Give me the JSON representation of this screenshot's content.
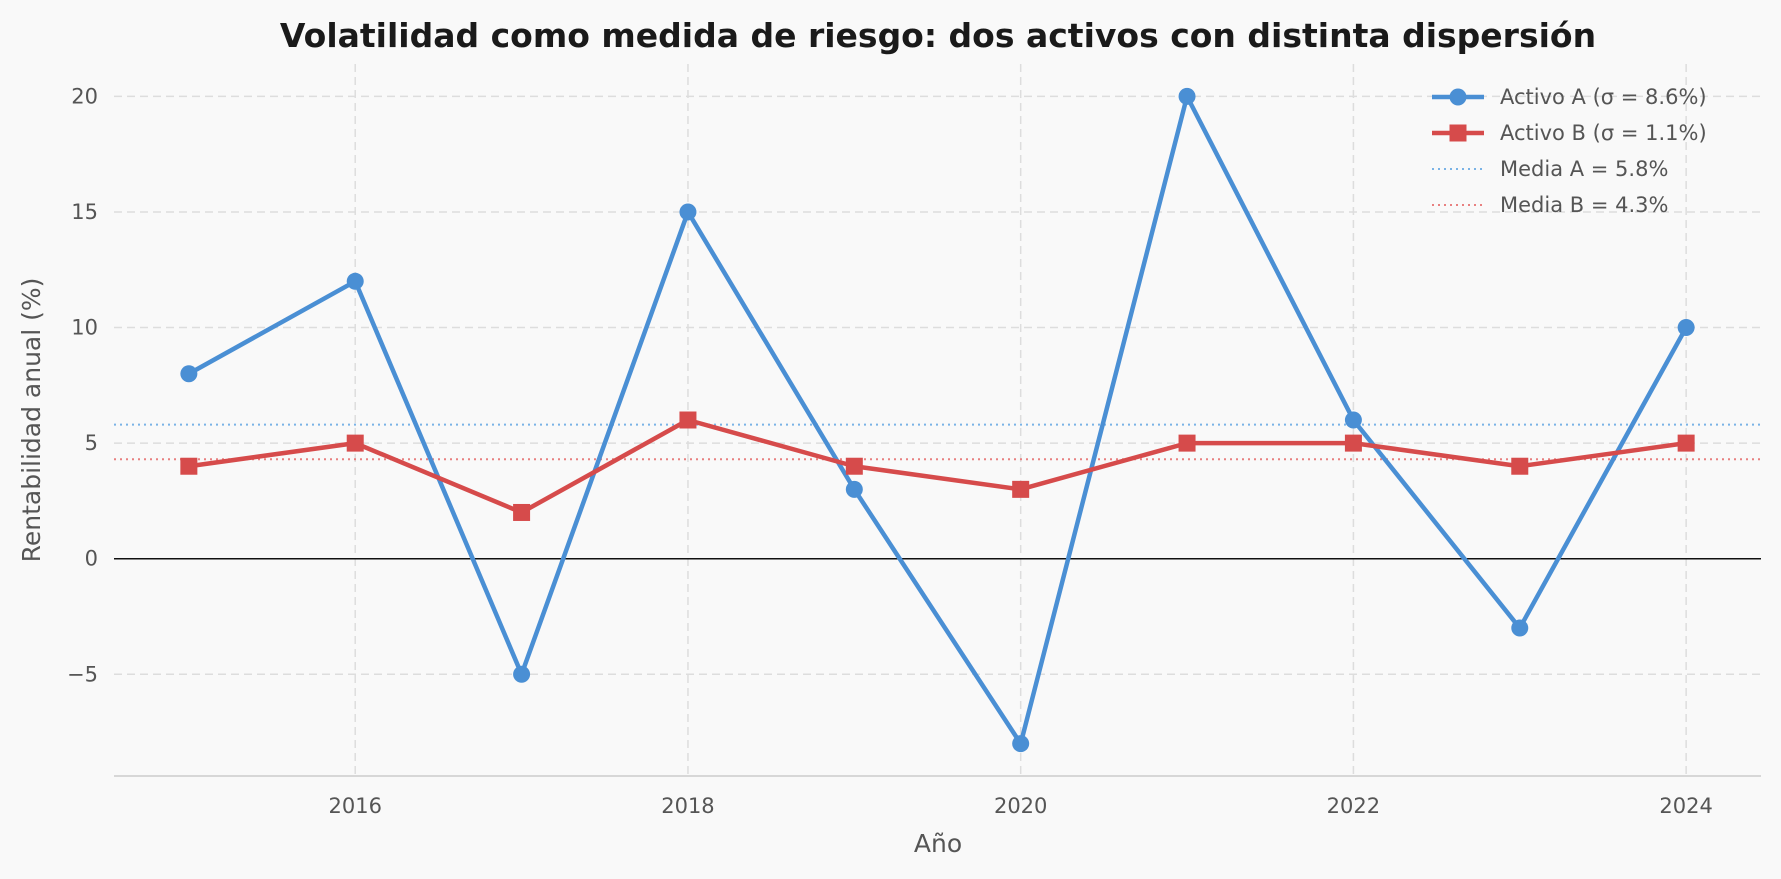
{
  "chart_data": {
    "type": "line",
    "title": "Volatilidad como medida de riesgo: dos activos con distinta dispersión",
    "xlabel": "Año",
    "ylabel": "Rentabilidad anual (%)",
    "x": [
      2015,
      2016,
      2017,
      2018,
      2019,
      2020,
      2021,
      2022,
      2023,
      2024
    ],
    "xlim": [
      2014.55,
      2024.45
    ],
    "ylim": [
      -9.4,
      21.4
    ],
    "xticks": [
      2016,
      2018,
      2020,
      2022,
      2024
    ],
    "xtick_labels": [
      "2016",
      "2018",
      "2020",
      "2022",
      "2024"
    ],
    "yticks": [
      -5,
      0,
      5,
      10,
      15,
      20
    ],
    "ytick_labels": [
      "−5",
      "0",
      "5",
      "10",
      "15",
      "20"
    ],
    "grid": true,
    "zero_line": true,
    "legend_position": "top-right",
    "series": [
      {
        "name": "Activo A  (σ = 8.6%)",
        "values": [
          8,
          12,
          -5,
          15,
          3,
          -8,
          20,
          6,
          -3,
          10
        ],
        "color": "#4a8fd4",
        "marker": "circle"
      },
      {
        "name": "Activo B  (σ = 1.1%)",
        "values": [
          4,
          5,
          2,
          6,
          4,
          3,
          5,
          5,
          4,
          5
        ],
        "color": "#d64b4b",
        "marker": "square"
      }
    ],
    "reference_lines": [
      {
        "name": "Media A = 5.8%",
        "value": 5.8,
        "color": "#7ab3e6",
        "style": "dotted"
      },
      {
        "name": "Media B = 4.3%",
        "value": 4.3,
        "color": "#e88080",
        "style": "dotted"
      }
    ]
  }
}
